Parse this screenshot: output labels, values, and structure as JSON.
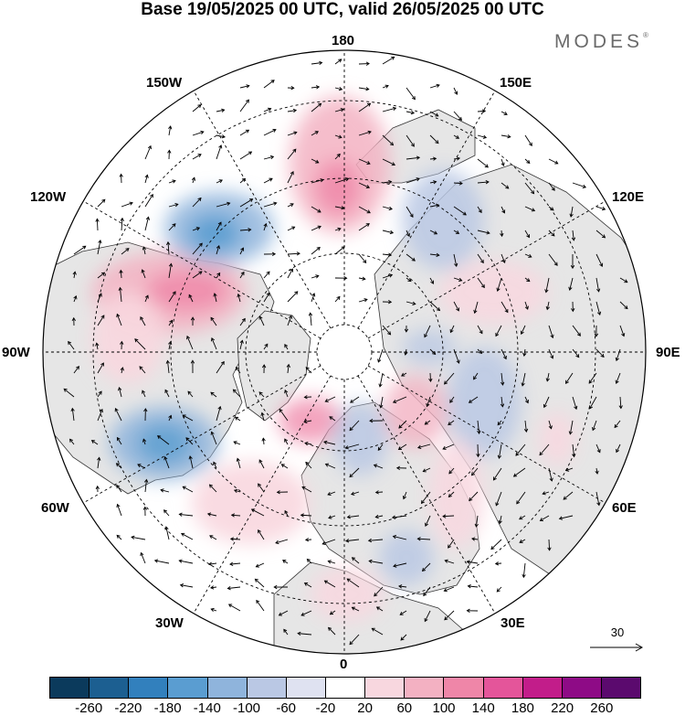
{
  "title": "Base 19/05/2025 00 UTC, valid 26/05/2025 00 UTC",
  "logo": "MODES",
  "logo_mark": "®",
  "longitude_labels": {
    "n180": "180",
    "w150": "150W",
    "e150": "150E",
    "w120": "120W",
    "e120": "120E",
    "w90": "90W",
    "e90": "90E",
    "w60": "60W",
    "e60": "60E",
    "w30": "30W",
    "e30": "30E",
    "zero": "0"
  },
  "reference_vector": {
    "label": "30",
    "magnitude": 30
  },
  "colorbar": {
    "colors": [
      "#0b3a5c",
      "#1c5f91",
      "#3280bd",
      "#5a9dd1",
      "#8fb4dc",
      "#bac8e4",
      "#dfe2f1",
      "#ffffff",
      "#f8d7df",
      "#f3b1c2",
      "#ef86a8",
      "#e4559a",
      "#c21d8a",
      "#8e0b86",
      "#5b0a6e"
    ],
    "ticks": [
      "-260",
      "-220",
      "-180",
      "-140",
      "-100",
      "-60",
      "-20",
      "20",
      "60",
      "100",
      "140",
      "180",
      "220",
      "260"
    ]
  },
  "colors": {
    "land": "#e8e8e8",
    "ocean": "#ffffff",
    "coast": "#303030",
    "grid": "#000000"
  }
}
